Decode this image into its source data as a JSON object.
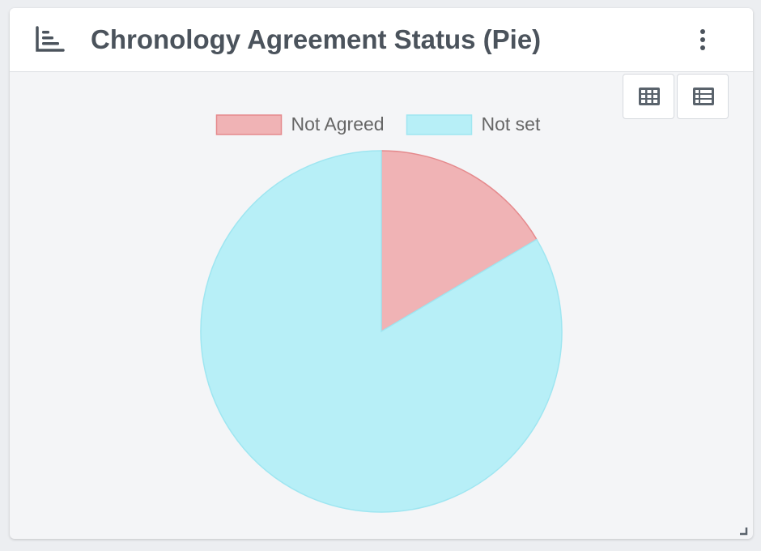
{
  "widget": {
    "title": "Chronology Agreement Status (Pie)",
    "header_icon": "bar-chart-horizontal-icon",
    "menu_icon": "more-vertical-icon",
    "view_buttons": [
      {
        "name": "grid-view-button",
        "icon": "grid-table-icon"
      },
      {
        "name": "list-view-button",
        "icon": "list-table-icon"
      }
    ],
    "resize_icon": "resize-corner-icon"
  },
  "colors": {
    "text": "#4b535c",
    "legend_text": "#666666",
    "not_agreed_fill": "#f0b3b5",
    "not_agreed_stroke": "#e58a8d",
    "not_set_fill": "#b7eff7",
    "not_set_stroke": "#9fe6f1"
  },
  "chart_data": {
    "type": "pie",
    "title": "",
    "legend_position": "top",
    "categories": [
      "Not Agreed",
      "Not set"
    ],
    "values": [
      16.5,
      83.5
    ]
  }
}
